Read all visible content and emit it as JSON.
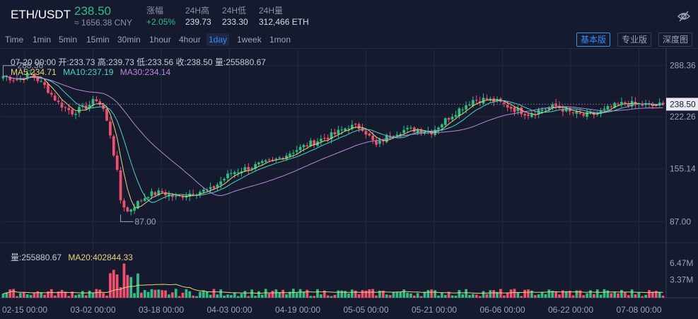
{
  "header": {
    "pair": "ETH/USDT",
    "price": "238.50",
    "cny": "≈ 1656.38 CNY",
    "stats": [
      {
        "label": "涨幅",
        "value": "+2.05%",
        "green": true
      },
      {
        "label": "24H高",
        "value": "239.73"
      },
      {
        "label": "24H低",
        "value": "233.30"
      },
      {
        "label": "24H量",
        "value": "312,466 ETH"
      }
    ],
    "hide_icon": "eye-off-icon"
  },
  "toolbar": {
    "timeframes": [
      "Time",
      "1min",
      "5min",
      "15min",
      "30min",
      "1hour",
      "4hour",
      "1day",
      "1week",
      "1mon"
    ],
    "active_timeframe": "1day",
    "views": [
      "基本版",
      "专业版",
      "深度图"
    ],
    "active_view": "基本版"
  },
  "legend": {
    "ohlc": "07-20 00:00  开:233.73  高:239.73  低:233.56  收:238.50  量:255880.67",
    "ma5": "MA5:234.71",
    "ma10": "MA10:237.19",
    "ma30": "MA30:234.14",
    "vol": "量:255880.67",
    "vol_ma20": "MA20:402844.33"
  },
  "colors": {
    "up": "#2ebd85",
    "down": "#f0506e",
    "ma5": "#e8d47a",
    "ma10": "#4fd1c5",
    "ma30": "#b48ad8",
    "accent": "#3b8cf5"
  },
  "chart_data": {
    "type": "candlestick",
    "price_axis_ticks": [
      "288.36",
      "222.26",
      "155.14",
      "87.00"
    ],
    "price_range": [
      60,
      310
    ],
    "last_price_label": "238.50",
    "high_marker": "288.36",
    "low_marker": "87.00",
    "volume_axis_ticks": [
      "6.47M",
      "3.37M"
    ],
    "volume_range": [
      0,
      9000000
    ],
    "x_tick_labels": [
      "02-15 00:00",
      "03-02 00:00",
      "03-18 00:00",
      "04-03 00:00",
      "04-19 00:00",
      "05-05 00:00",
      "05-21 00:00",
      "06-06 00:00",
      "06-22 00:00",
      "07-08 00:00"
    ],
    "close_keypoints": [
      [
        0,
        275
      ],
      [
        4,
        270
      ],
      [
        8,
        278
      ],
      [
        12,
        262
      ],
      [
        16,
        240
      ],
      [
        20,
        228
      ],
      [
        24,
        235
      ],
      [
        27,
        245
      ],
      [
        29,
        232
      ],
      [
        31,
        200
      ],
      [
        33,
        150
      ],
      [
        34,
        115
      ],
      [
        36,
        100
      ],
      [
        38,
        108
      ],
      [
        42,
        122
      ],
      [
        46,
        125
      ],
      [
        50,
        118
      ],
      [
        55,
        125
      ],
      [
        60,
        128
      ],
      [
        66,
        150
      ],
      [
        72,
        158
      ],
      [
        78,
        165
      ],
      [
        84,
        178
      ],
      [
        90,
        190
      ],
      [
        96,
        200
      ],
      [
        100,
        210
      ],
      [
        104,
        208
      ],
      [
        108,
        185
      ],
      [
        112,
        200
      ],
      [
        116,
        205
      ],
      [
        120,
        206
      ],
      [
        124,
        203
      ],
      [
        128,
        218
      ],
      [
        132,
        232
      ],
      [
        136,
        244
      ],
      [
        140,
        245
      ],
      [
        144,
        240
      ],
      [
        148,
        232
      ],
      [
        152,
        226
      ],
      [
        156,
        232
      ],
      [
        160,
        236
      ],
      [
        164,
        228
      ],
      [
        168,
        224
      ],
      [
        172,
        226
      ],
      [
        176,
        235
      ],
      [
        180,
        240
      ],
      [
        184,
        238
      ],
      [
        188,
        236
      ],
      [
        191,
        238.5
      ]
    ],
    "candle_count": 192
  }
}
